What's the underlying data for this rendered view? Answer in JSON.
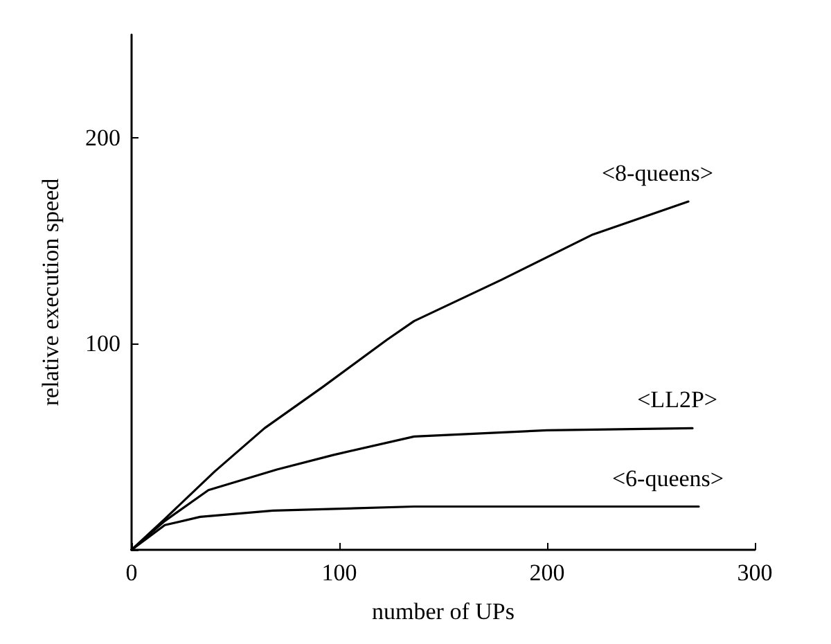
{
  "chart_data": {
    "type": "line",
    "xlabel": "number of UPs",
    "ylabel": "relative execution speed",
    "xlim": [
      0,
      300
    ],
    "ylim": [
      0,
      250
    ],
    "xticks": [
      0,
      100,
      200,
      300
    ],
    "yticks": [
      {
        "value": 0,
        "label": null
      },
      100,
      200
    ],
    "grid": false,
    "marker": "none",
    "line_style": "solid",
    "series": [
      {
        "name": "<8-queens>",
        "color": "#000000",
        "x": [
          0,
          16,
          40,
          64,
          92,
          123,
          136,
          178,
          222,
          268
        ],
        "values": [
          0,
          15,
          38,
          59,
          79,
          102,
          111,
          131,
          153,
          169
        ]
      },
      {
        "name": "<LL2P>",
        "color": "#000000",
        "x": [
          0,
          16,
          37,
          70,
          97,
          136,
          200,
          270
        ],
        "values": [
          0,
          14,
          29,
          39,
          46,
          55,
          58,
          59
        ]
      },
      {
        "name": "<6-queens>",
        "color": "#000000",
        "x": [
          0,
          16,
          33,
          68,
          136,
          200,
          273
        ],
        "values": [
          0,
          12,
          16,
          19,
          21,
          21,
          21
        ]
      }
    ]
  }
}
